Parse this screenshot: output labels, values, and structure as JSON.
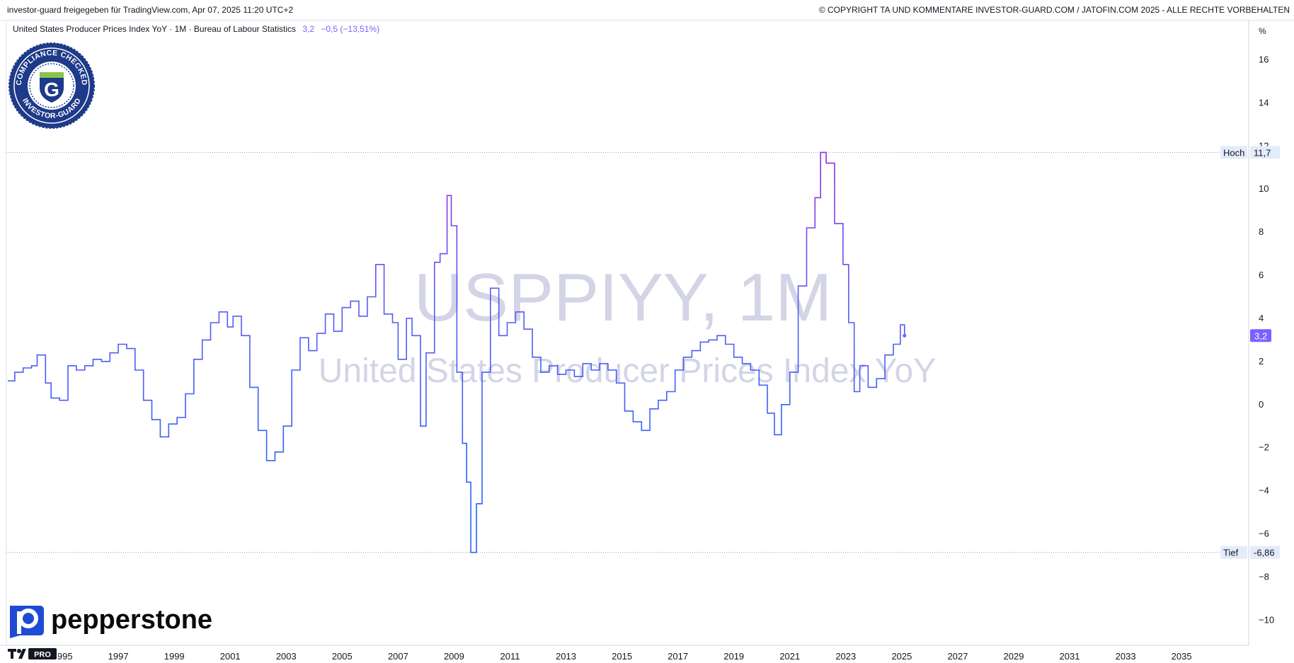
{
  "header": {
    "shared_by": "investor-guard freigegeben für TradingView.com, Apr 07, 2025 11:20 UTC+2",
    "copyright": "© COPYRIGHT TA UND KOMMENTARE INVESTOR-GUARD.COM / JATOFIN.COM 2025 - ALLE RECHTE VORBEHALTEN"
  },
  "legend": {
    "series_title": "United States Producer Prices Index YoY · 1M · Bureau of Labour Statistics",
    "last_value": "3,2",
    "change": "−0,5 (−13,51%)"
  },
  "watermark": {
    "line1": "USPPIYY, 1M",
    "line2": "United States Producer Prices Index YoY"
  },
  "seal": {
    "top_text": "COMPLIANCE CHECKED",
    "bottom_text": "INVESTOR-GUARD",
    "letter": "G"
  },
  "brand": {
    "name": "pepperstone",
    "tv_label": "PRO"
  },
  "colors": {
    "line_low": "#2962ff",
    "line_high": "#9c27f0",
    "accent": "#7b61ff",
    "watermark": "#c8cbe0",
    "seal": "#1e3a8a"
  },
  "chart_data": {
    "type": "line",
    "title": "United States Producer Prices Index YoY",
    "ylabel": "%",
    "ylim": [
      -11.5,
      17
    ],
    "xlim": [
      1993.0,
      2037.4
    ],
    "y_ticks": [
      16,
      14,
      12,
      10,
      8,
      6,
      4,
      2,
      0,
      -2,
      -4,
      -6,
      -8,
      -10
    ],
    "x_ticks": [
      "1995",
      "1997",
      "1999",
      "2001",
      "2003",
      "2005",
      "2007",
      "2009",
      "2011",
      "2013",
      "2015",
      "2017",
      "2019",
      "2021",
      "2023",
      "2025",
      "2027",
      "2029",
      "2031",
      "2033",
      "2035"
    ],
    "grid": false,
    "high": {
      "label": "Hoch",
      "value": 11.7,
      "text": "11,7"
    },
    "low": {
      "label": "Tief",
      "value": -6.86,
      "text": "-6,86"
    },
    "last": {
      "value": 3.2,
      "text": "3,2"
    },
    "unit_label": "%",
    "series": [
      {
        "x": [
          1993.05,
          1993.3,
          1993.6,
          1993.9,
          1994.1,
          1994.4,
          1994.6,
          1994.9,
          1995.2,
          1995.5,
          1995.8,
          1996.1,
          1996.4,
          1996.7,
          1997.0,
          1997.3,
          1997.6,
          1997.9,
          1998.2,
          1998.5,
          1998.8,
          1999.1,
          1999.4,
          1999.7,
          2000.0,
          2000.3,
          2000.6,
          2000.9,
          2001.1,
          2001.4,
          2001.7,
          2002.0,
          2002.3,
          2002.6,
          2002.9,
          2003.2,
          2003.5,
          2003.8,
          2004.1,
          2004.4,
          2004.7,
          2005.0,
          2005.3,
          2005.6,
          2005.9,
          2006.2,
          2006.5,
          2006.8,
          2007.0,
          2007.3,
          2007.5,
          2007.8,
          2008.0,
          2008.3,
          2008.5,
          2008.75,
          2008.9,
          2009.1,
          2009.3,
          2009.45,
          2009.6,
          2009.8,
          2010.0,
          2010.3,
          2010.6,
          2010.9,
          2011.2,
          2011.5,
          2011.8,
          2012.1,
          2012.4,
          2012.7,
          2013.0,
          2013.3,
          2013.6,
          2013.9,
          2014.2,
          2014.5,
          2014.8,
          2015.1,
          2015.4,
          2015.7,
          2016.0,
          2016.3,
          2016.6,
          2016.9,
          2017.2,
          2017.5,
          2017.8,
          2018.1,
          2018.4,
          2018.7,
          2019.0,
          2019.3,
          2019.6,
          2019.9,
          2020.2,
          2020.45,
          2020.7,
          2021.0,
          2021.3,
          2021.6,
          2021.9,
          2022.1,
          2022.3,
          2022.6,
          2022.9,
          2023.1,
          2023.3,
          2023.5,
          2023.8,
          2024.1,
          2024.4,
          2024.7,
          2024.95,
          2025.1
        ],
        "values": [
          1.1,
          1.5,
          1.7,
          1.8,
          2.3,
          1.0,
          0.3,
          0.2,
          1.8,
          1.6,
          1.8,
          2.1,
          2.0,
          2.4,
          2.8,
          2.6,
          1.6,
          0.2,
          -0.7,
          -1.5,
          -0.9,
          -0.6,
          0.5,
          2.1,
          3.0,
          3.8,
          4.3,
          3.6,
          4.1,
          3.2,
          0.8,
          -1.2,
          -2.6,
          -2.2,
          -1.0,
          1.6,
          3.1,
          2.5,
          3.3,
          4.2,
          3.4,
          4.5,
          4.8,
          4.1,
          5.0,
          6.5,
          4.2,
          3.8,
          2.1,
          4.0,
          3.2,
          -1.0,
          2.4,
          6.6,
          7.0,
          9.7,
          8.3,
          1.5,
          -1.8,
          -3.6,
          -6.86,
          -4.6,
          1.5,
          5.4,
          3.2,
          3.8,
          4.3,
          3.5,
          2.2,
          1.5,
          1.8,
          1.4,
          1.6,
          1.3,
          1.9,
          1.6,
          1.9,
          1.6,
          1.0,
          -0.3,
          -0.8,
          -1.2,
          -0.2,
          0.2,
          0.6,
          1.6,
          2.2,
          2.5,
          2.9,
          3.0,
          3.2,
          2.8,
          2.2,
          1.9,
          1.6,
          0.9,
          -0.4,
          -1.4,
          0.0,
          1.5,
          5.5,
          8.2,
          9.6,
          11.7,
          11.2,
          8.4,
          6.5,
          3.8,
          0.6,
          1.8,
          0.8,
          1.2,
          2.3,
          2.8,
          3.7,
          3.2
        ]
      }
    ]
  }
}
